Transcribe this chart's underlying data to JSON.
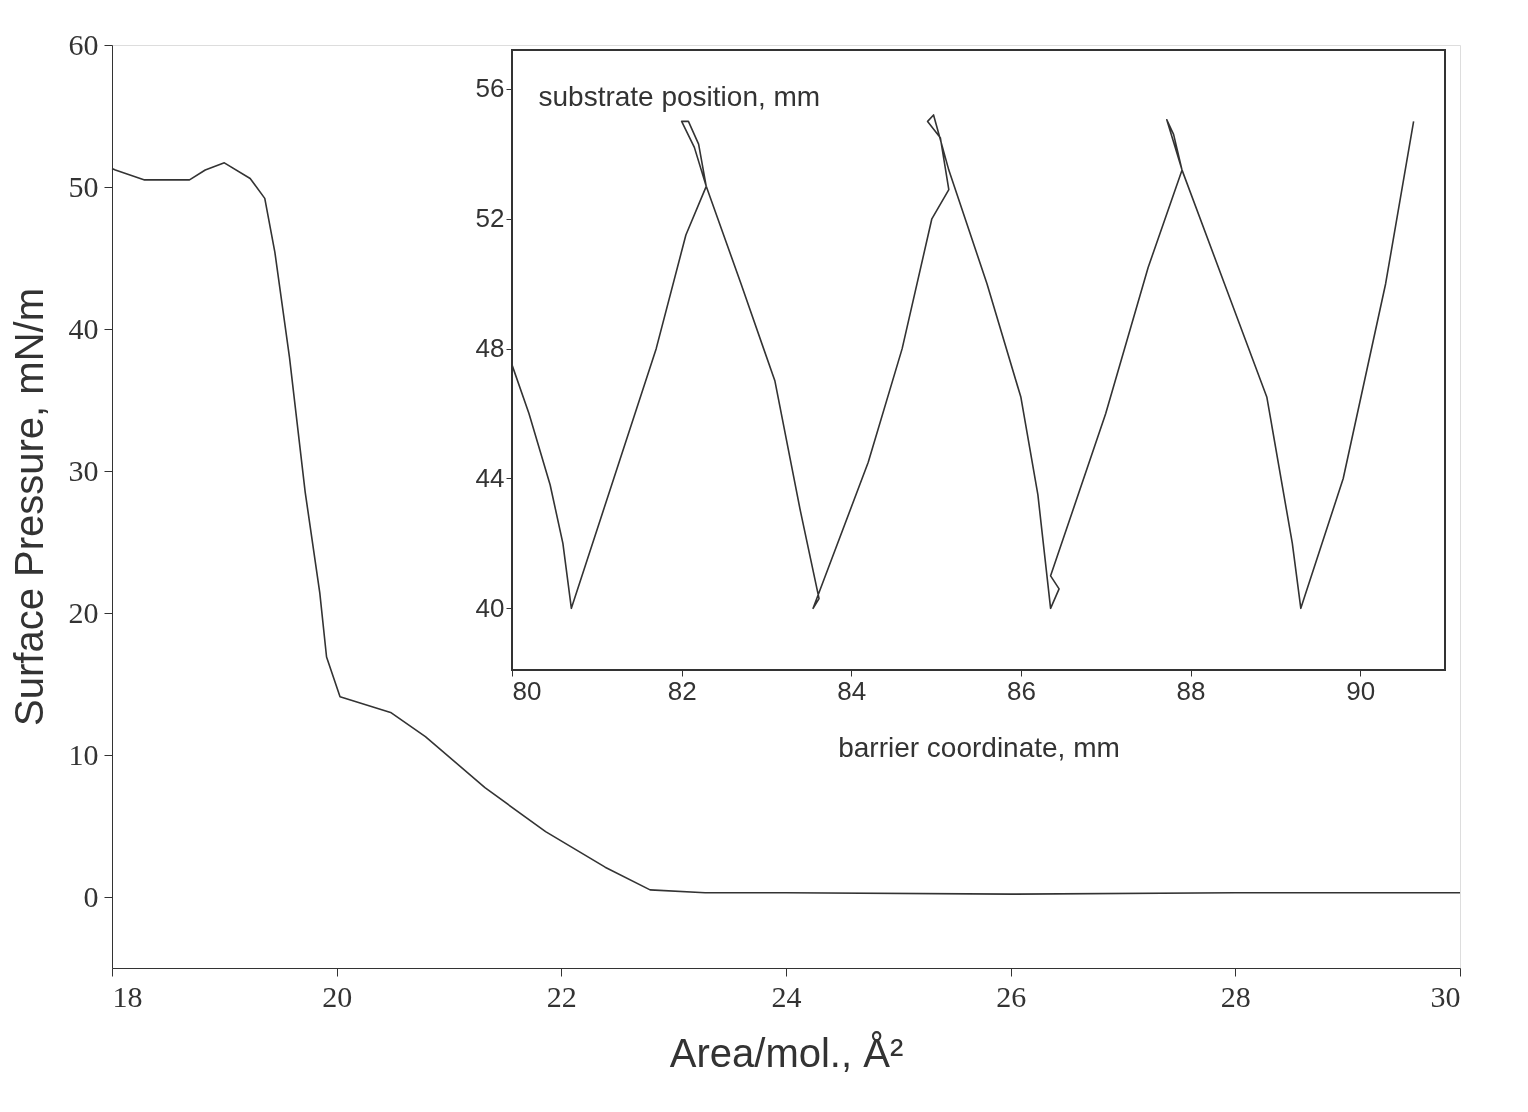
{
  "chart_data": [
    {
      "type": "line",
      "xlabel": "Area/mol., Å²",
      "ylabel": "Surface Pressure, mN/m",
      "xlim": [
        18,
        30
      ],
      "ylim": [
        -5,
        60
      ],
      "xticks": [
        18,
        20,
        22,
        24,
        26,
        28,
        30
      ],
      "yticks": [
        0,
        10,
        20,
        30,
        40,
        50,
        60
      ],
      "marker": "none",
      "line_style": "solid",
      "series": [
        {
          "color": "#333333",
          "x": [
            18.0,
            18.03,
            18.29,
            18.69,
            18.83,
            19.0,
            19.23,
            19.36,
            19.45,
            19.58,
            19.72,
            19.85,
            19.91,
            20.03,
            20.48,
            20.79,
            21.32,
            21.86,
            22.39,
            22.79,
            23.28,
            24.0,
            26.0,
            28.0,
            30.0
          ],
          "values": [
            51.3,
            51.2,
            50.5,
            50.5,
            51.2,
            51.7,
            50.6,
            49.2,
            45.4,
            38,
            28.5,
            21.4,
            16.9,
            14.1,
            13.0,
            11.3,
            7.7,
            4.6,
            2.1,
            0.5,
            0.3,
            0.3,
            0.2,
            0.3,
            0.3
          ]
        }
      ]
    },
    {
      "type": "line",
      "xlabel": "barrier coordinate, mm",
      "ylabel": "substrate position, mm",
      "xlim": [
        80,
        91
      ],
      "ylim": [
        38.1,
        57.2
      ],
      "xticks": [
        80,
        82,
        84,
        86,
        88,
        90
      ],
      "yticks": [
        40,
        44,
        48,
        52,
        56
      ],
      "marker": "none",
      "line_style": "solid",
      "series": [
        {
          "color": "#333333",
          "x": [
            80.0,
            80.2,
            80.45,
            80.6,
            80.7,
            81.2,
            81.7,
            82.05,
            82.29,
            82.2,
            82.08,
            82.0,
            82.15,
            82.29,
            82.7,
            83.1,
            83.4,
            83.62,
            83.55,
            84.2,
            84.6,
            84.95,
            85.15,
            85.05,
            84.9,
            84.97,
            85.15,
            85.6,
            86.0,
            86.2,
            86.35,
            86.45,
            86.35,
            87.0,
            87.5,
            87.9,
            87.8,
            87.72,
            87.9,
            88.4,
            88.9,
            89.2,
            89.3,
            89.8,
            90.3,
            90.63
          ],
          "values": [
            47.5,
            46,
            43.8,
            42,
            40,
            44,
            48,
            51.5,
            53,
            54.3,
            55,
            55,
            54.2,
            53,
            50,
            47,
            43,
            40.3,
            40,
            44.5,
            48,
            52,
            52.9,
            54.5,
            55,
            55.2,
            53.5,
            50,
            46.5,
            43.5,
            40,
            40.6,
            41,
            46,
            50.5,
            53.5,
            54.6,
            55.05,
            53.5,
            50,
            46.5,
            42,
            40,
            44,
            50,
            55
          ]
        }
      ]
    }
  ]
}
